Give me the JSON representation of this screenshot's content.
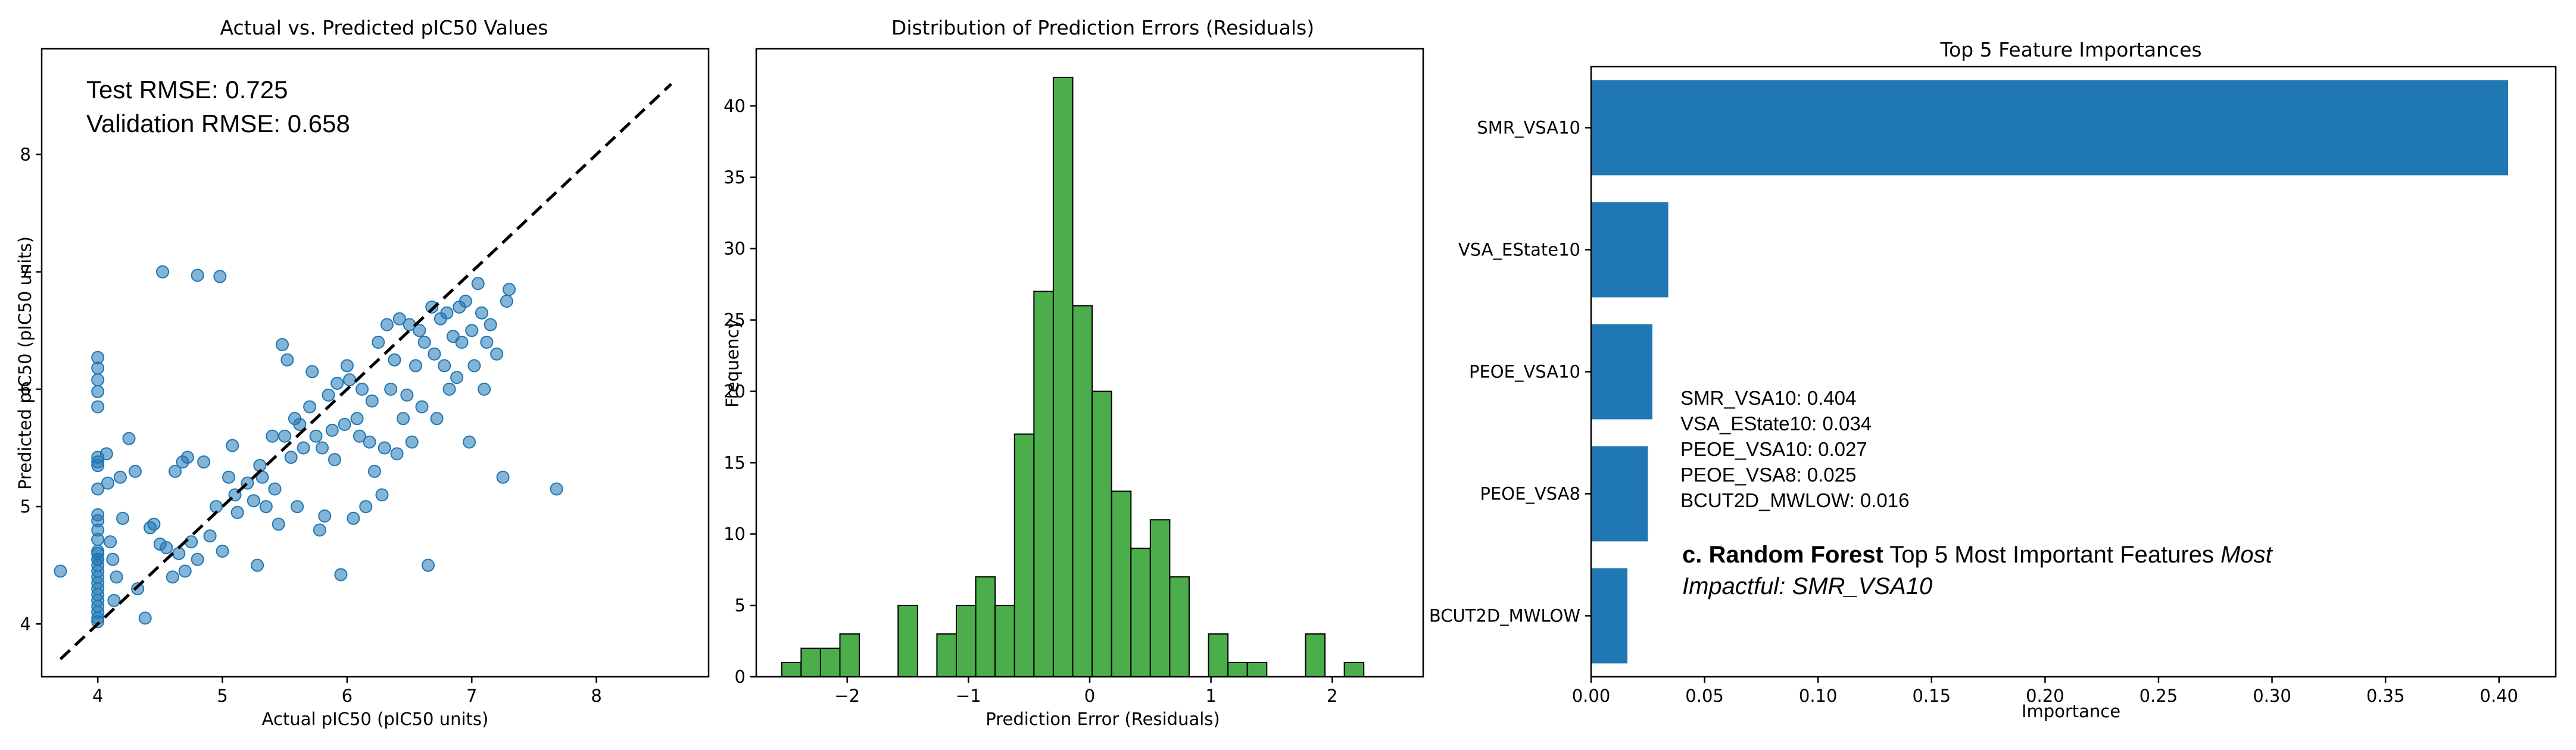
{
  "chart_data": [
    {
      "type": "scatter",
      "title": "Actual vs. Predicted pIC50 Values",
      "xlabel": "Actual pIC50 (pIC50 units)",
      "ylabel": "Predicted pIC50 (pIC50 units)",
      "xlim": [
        3.55,
        8.9
      ],
      "ylim": [
        3.55,
        8.9
      ],
      "xticks": [
        4,
        5,
        6,
        7,
        8
      ],
      "yticks": [
        4,
        5,
        6,
        7,
        8
      ],
      "grid": false,
      "point_color": "#1f77b4",
      "reference_line": {
        "style": "dashed",
        "color": "#000000",
        "from": [
          3.7,
          3.7
        ],
        "to": [
          8.6,
          8.6
        ]
      },
      "annotations": [
        "Test RMSE: 0.725",
        "Validation RMSE: 0.658"
      ],
      "points": [
        [
          3.7,
          4.45
        ],
        [
          4.52,
          7.0
        ],
        [
          4.8,
          6.97
        ],
        [
          4.98,
          6.96
        ],
        [
          4.0,
          6.27
        ],
        [
          4.0,
          6.18
        ],
        [
          4.0,
          6.08
        ],
        [
          4.0,
          5.98
        ],
        [
          4.0,
          5.85
        ],
        [
          4.0,
          5.42
        ],
        [
          4.0,
          5.38
        ],
        [
          4.0,
          5.35
        ],
        [
          4.0,
          5.15
        ],
        [
          4.0,
          4.93
        ],
        [
          4.0,
          4.88
        ],
        [
          4.0,
          4.8
        ],
        [
          4.0,
          4.72
        ],
        [
          4.0,
          4.62
        ],
        [
          4.0,
          4.55
        ],
        [
          4.0,
          4.5
        ],
        [
          4.0,
          4.45
        ],
        [
          4.0,
          4.4
        ],
        [
          4.0,
          4.35
        ],
        [
          4.0,
          4.3
        ],
        [
          4.0,
          4.25
        ],
        [
          4.0,
          4.2
        ],
        [
          4.0,
          4.15
        ],
        [
          4.0,
          4.1
        ],
        [
          4.0,
          4.05
        ],
        [
          4.0,
          4.02
        ],
        [
          4.0,
          4.6
        ],
        [
          4.0,
          4.55
        ],
        [
          4.07,
          5.45
        ],
        [
          4.08,
          5.2
        ],
        [
          4.1,
          4.7
        ],
        [
          4.12,
          4.55
        ],
        [
          4.13,
          4.2
        ],
        [
          4.15,
          4.4
        ],
        [
          4.18,
          5.25
        ],
        [
          4.2,
          4.9
        ],
        [
          4.25,
          5.58
        ],
        [
          4.3,
          5.3
        ],
        [
          4.32,
          4.3
        ],
        [
          4.38,
          4.05
        ],
        [
          4.42,
          4.82
        ],
        [
          4.45,
          4.85
        ],
        [
          4.5,
          4.68
        ],
        [
          4.55,
          4.65
        ],
        [
          4.6,
          4.4
        ],
        [
          4.62,
          5.3
        ],
        [
          4.65,
          4.6
        ],
        [
          4.68,
          5.38
        ],
        [
          4.7,
          4.45
        ],
        [
          4.72,
          5.42
        ],
        [
          4.75,
          4.7
        ],
        [
          4.8,
          4.55
        ],
        [
          4.85,
          5.38
        ],
        [
          4.9,
          4.75
        ],
        [
          4.95,
          5.0
        ],
        [
          5.0,
          4.62
        ],
        [
          5.05,
          5.25
        ],
        [
          5.08,
          5.52
        ],
        [
          5.1,
          5.1
        ],
        [
          5.12,
          4.95
        ],
        [
          5.2,
          5.2
        ],
        [
          5.25,
          5.05
        ],
        [
          5.28,
          4.5
        ],
        [
          5.3,
          5.35
        ],
        [
          5.32,
          5.25
        ],
        [
          5.35,
          5.0
        ],
        [
          5.4,
          5.6
        ],
        [
          5.42,
          5.15
        ],
        [
          5.45,
          4.85
        ],
        [
          5.48,
          6.38
        ],
        [
          5.5,
          5.6
        ],
        [
          5.52,
          6.25
        ],
        [
          5.55,
          5.42
        ],
        [
          5.58,
          5.75
        ],
        [
          5.6,
          5.0
        ],
        [
          5.62,
          5.7
        ],
        [
          5.65,
          5.5
        ],
        [
          5.7,
          5.85
        ],
        [
          5.72,
          6.15
        ],
        [
          5.75,
          5.6
        ],
        [
          5.78,
          4.8
        ],
        [
          5.8,
          5.5
        ],
        [
          5.82,
          4.92
        ],
        [
          5.85,
          5.95
        ],
        [
          5.88,
          5.65
        ],
        [
          5.9,
          5.4
        ],
        [
          5.92,
          6.05
        ],
        [
          5.95,
          4.42
        ],
        [
          5.98,
          5.7
        ],
        [
          6.0,
          6.2
        ],
        [
          6.02,
          6.08
        ],
        [
          6.05,
          4.9
        ],
        [
          6.08,
          5.75
        ],
        [
          6.1,
          5.6
        ],
        [
          6.12,
          6.0
        ],
        [
          6.15,
          5.0
        ],
        [
          6.18,
          5.55
        ],
        [
          6.2,
          5.9
        ],
        [
          6.22,
          5.3
        ],
        [
          6.25,
          6.4
        ],
        [
          6.28,
          5.1
        ],
        [
          6.3,
          5.5
        ],
        [
          6.32,
          6.55
        ],
        [
          6.35,
          6.0
        ],
        [
          6.38,
          6.25
        ],
        [
          6.4,
          5.45
        ],
        [
          6.42,
          6.6
        ],
        [
          6.45,
          5.75
        ],
        [
          6.48,
          5.95
        ],
        [
          6.5,
          6.55
        ],
        [
          6.52,
          5.55
        ],
        [
          6.55,
          6.2
        ],
        [
          6.58,
          6.5
        ],
        [
          6.6,
          5.85
        ],
        [
          6.62,
          6.4
        ],
        [
          6.65,
          4.5
        ],
        [
          6.68,
          6.7
        ],
        [
          6.7,
          6.3
        ],
        [
          6.72,
          5.75
        ],
        [
          6.75,
          6.6
        ],
        [
          6.78,
          6.2
        ],
        [
          6.8,
          6.65
        ],
        [
          6.82,
          6.0
        ],
        [
          6.85,
          6.45
        ],
        [
          6.88,
          6.1
        ],
        [
          6.9,
          6.7
        ],
        [
          6.92,
          6.4
        ],
        [
          6.95,
          6.75
        ],
        [
          6.98,
          5.55
        ],
        [
          7.0,
          6.5
        ],
        [
          7.02,
          6.2
        ],
        [
          7.05,
          6.9
        ],
        [
          7.08,
          6.65
        ],
        [
          7.1,
          6.0
        ],
        [
          7.12,
          6.4
        ],
        [
          7.15,
          6.55
        ],
        [
          7.2,
          6.3
        ],
        [
          7.25,
          5.25
        ],
        [
          7.28,
          6.75
        ],
        [
          7.3,
          6.85
        ],
        [
          7.68,
          5.15
        ]
      ]
    },
    {
      "type": "bar",
      "subtype": "histogram",
      "title": "Distribution of Prediction Errors (Residuals)",
      "xlabel": "Prediction Error (Residuals)",
      "ylabel": "Frequency",
      "xlim": [
        -2.75,
        2.75
      ],
      "ylim": [
        0,
        44
      ],
      "xticks": [
        -2,
        -1,
        0,
        1,
        2
      ],
      "yticks": [
        0,
        5,
        10,
        15,
        20,
        25,
        30,
        35,
        40
      ],
      "bar_color": "#2ca02c",
      "bin_start": -2.54,
      "bin_width": 0.16,
      "counts": [
        1,
        2,
        2,
        3,
        0,
        0,
        5,
        0,
        3,
        5,
        7,
        5,
        17,
        27,
        42,
        26,
        20,
        13,
        9,
        11,
        7,
        0,
        3,
        1,
        1,
        0,
        0,
        3,
        0,
        1
      ]
    },
    {
      "type": "bar",
      "orientation": "horizontal",
      "title": "Top 5 Feature Importances",
      "xlabel": "Importance",
      "ylabel": "",
      "xlim": [
        0,
        0.425
      ],
      "xticks": [
        0.0,
        0.05,
        0.1,
        0.15,
        0.2,
        0.25,
        0.3,
        0.35,
        0.4
      ],
      "xtick_labels": [
        "0.00",
        "0.05",
        "0.10",
        "0.15",
        "0.20",
        "0.25",
        "0.30",
        "0.35",
        "0.40"
      ],
      "bar_color": "#1f77b4",
      "categories": [
        "SMR_VSA10",
        "VSA_EState10",
        "PEOE_VSA10",
        "PEOE_VSA8",
        "BCUT2D_MWLOW"
      ],
      "values": [
        0.404,
        0.034,
        0.027,
        0.025,
        0.016
      ],
      "annotations": [
        "SMR_VSA10: 0.404",
        "VSA_EState10: 0.034",
        "PEOE_VSA10: 0.027",
        "PEOE_VSA8: 0.025",
        "BCUT2D_MWLOW: 0.016"
      ],
      "caption": {
        "prefix_bold": "c. Random Forest",
        "middle": " Top 5 Most Important Features ",
        "italic_1": "Most",
        "italic_2": "Impactful: SMR_VSA10"
      }
    }
  ]
}
